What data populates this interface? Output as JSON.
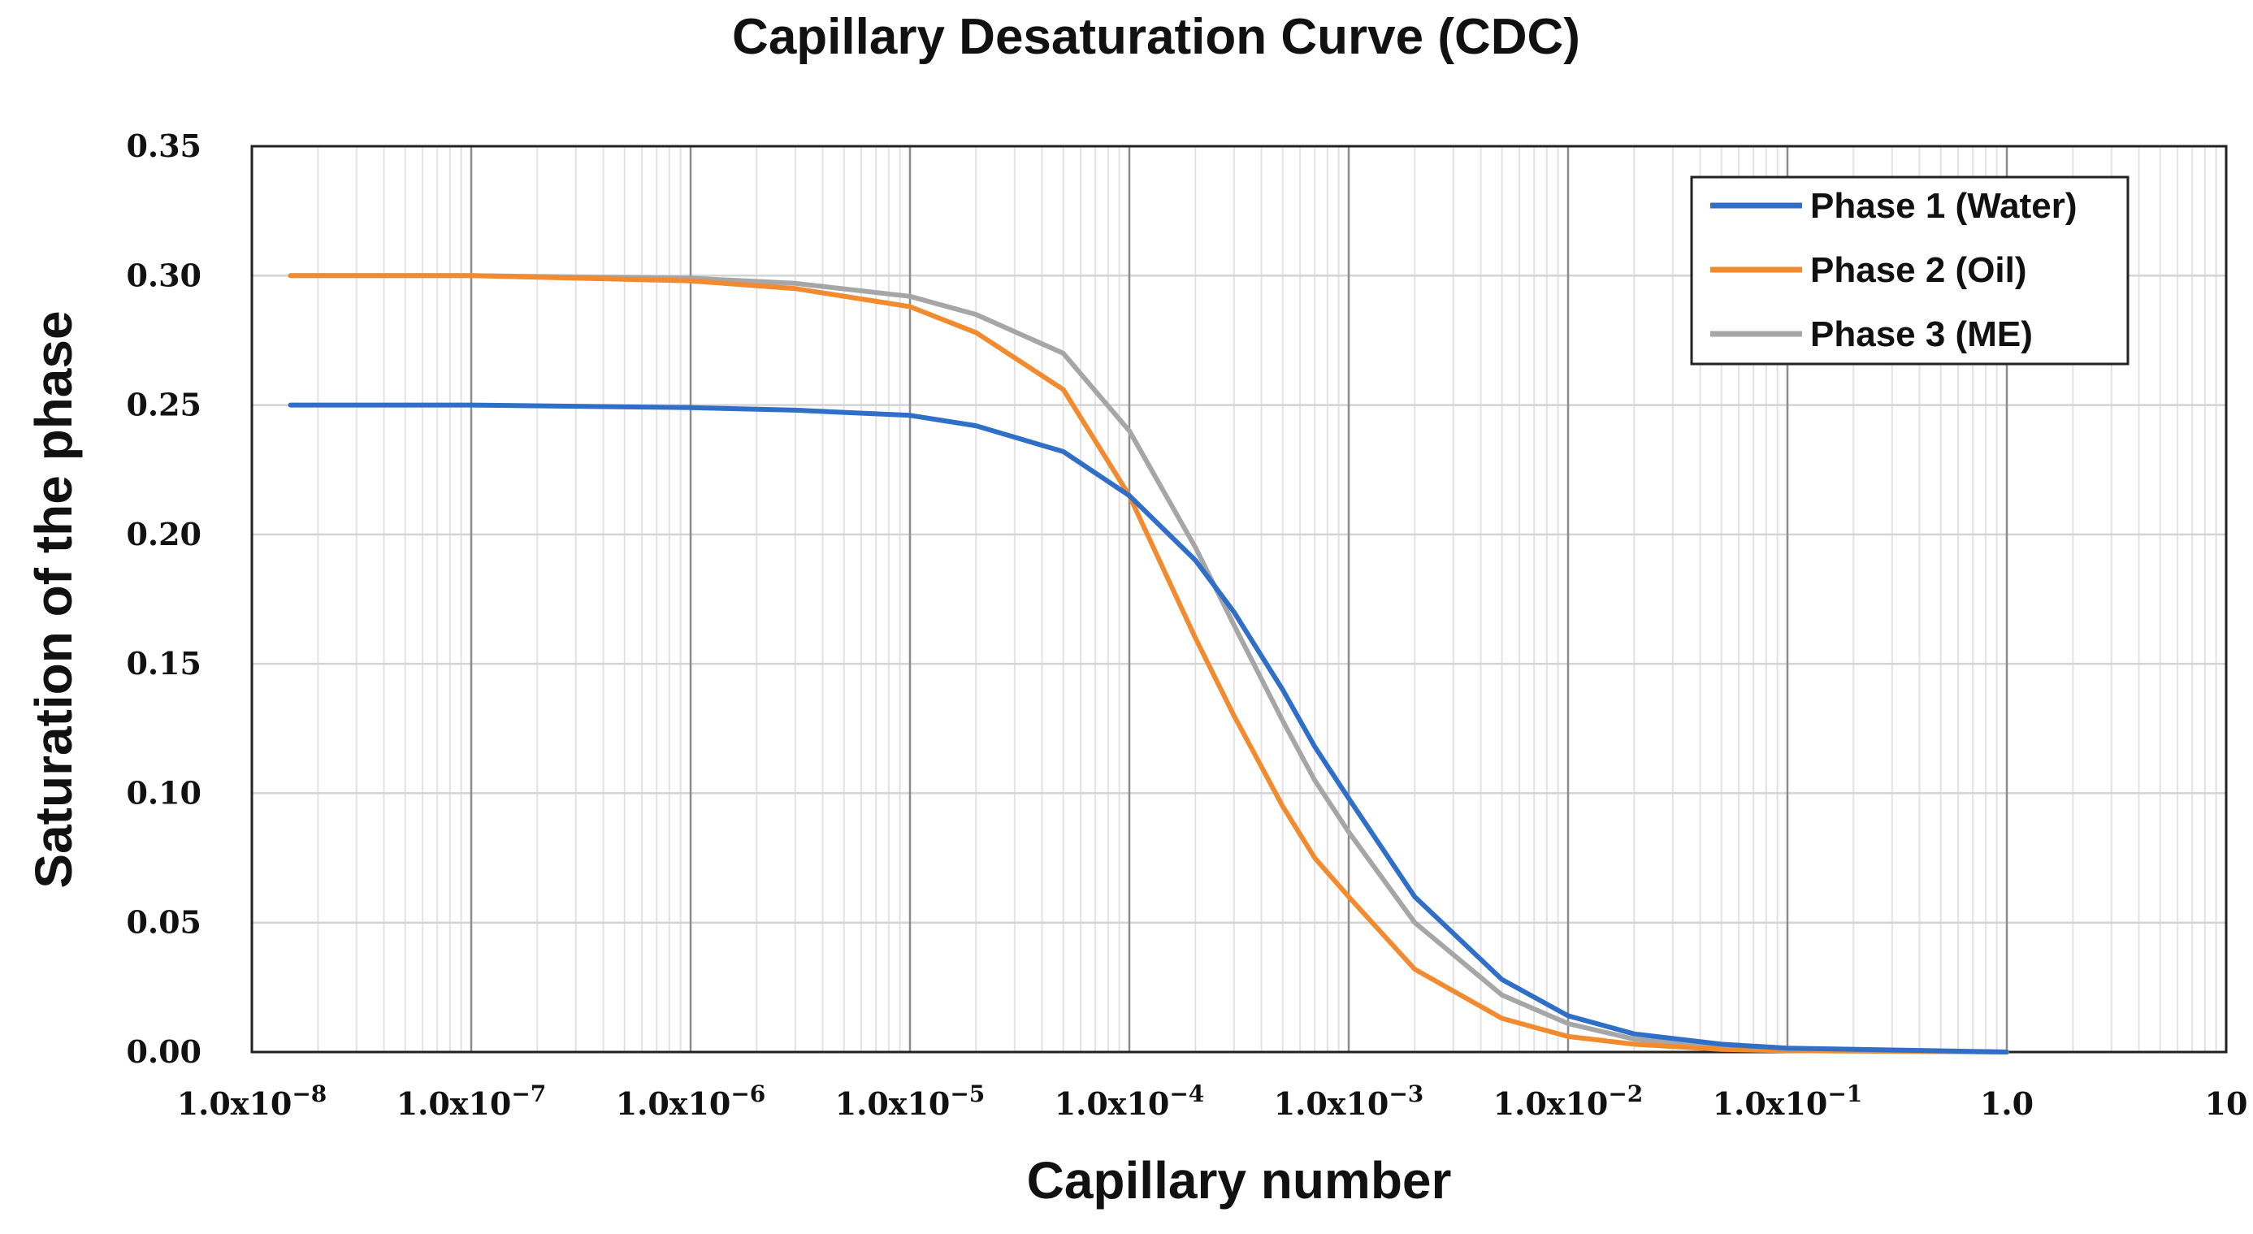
{
  "chart_data": {
    "type": "line",
    "title": "Capillary Desaturation Curve (CDC)",
    "xlabel": "Capillary number",
    "ylabel": "Saturation of the phase",
    "xscale": "log",
    "xlim": [
      1e-08,
      10
    ],
    "ylim": [
      0,
      0.35
    ],
    "grid": true,
    "legend_position": "top-right",
    "x_tick_labels": [
      {
        "mantissa": "1.0x10",
        "exp": "−8",
        "value": 1e-08
      },
      {
        "mantissa": "1.0x10",
        "exp": "−7",
        "value": 1e-07
      },
      {
        "mantissa": "1.0x10",
        "exp": "−6",
        "value": 1e-06
      },
      {
        "mantissa": "1.0x10",
        "exp": "−5",
        "value": 1e-05
      },
      {
        "mantissa": "1.0x10",
        "exp": "−4",
        "value": 0.0001
      },
      {
        "mantissa": "1.0x10",
        "exp": "−3",
        "value": 0.001
      },
      {
        "mantissa": "1.0x10",
        "exp": "−2",
        "value": 0.01
      },
      {
        "mantissa": "1.0x10",
        "exp": "−1",
        "value": 0.1
      },
      {
        "mantissa": "1.0",
        "exp": "",
        "value": 1
      },
      {
        "mantissa": "10",
        "exp": "",
        "value": 10
      }
    ],
    "y_tick_labels": [
      "0.00",
      "0.05",
      "0.10",
      "0.15",
      "0.20",
      "0.25",
      "0.30",
      "0.35"
    ],
    "y_tick_values": [
      0,
      0.05,
      0.1,
      0.15,
      0.2,
      0.25,
      0.3,
      0.35
    ],
    "series": [
      {
        "name": "Phase 1 (Water)",
        "color": "#2f6fc7",
        "x": [
          1.5e-08,
          1e-07,
          1e-06,
          3e-06,
          1e-05,
          2e-05,
          5e-05,
          0.0001,
          0.0002,
          0.0003,
          0.0005,
          0.0007,
          0.001,
          0.002,
          0.005,
          0.01,
          0.02,
          0.05,
          0.1,
          1
        ],
        "y": [
          0.25,
          0.25,
          0.249,
          0.248,
          0.246,
          0.242,
          0.232,
          0.215,
          0.19,
          0.17,
          0.14,
          0.118,
          0.098,
          0.06,
          0.028,
          0.014,
          0.007,
          0.003,
          0.0015,
          0.0
        ]
      },
      {
        "name": "Phase 2 (Oil)",
        "color": "#f28b30",
        "x": [
          1.5e-08,
          1e-07,
          1e-06,
          3e-06,
          1e-05,
          2e-05,
          5e-05,
          0.0001,
          0.0002,
          0.0003,
          0.0005,
          0.0007,
          0.001,
          0.002,
          0.005,
          0.01,
          0.02,
          0.05,
          0.1,
          1
        ],
        "y": [
          0.3,
          0.3,
          0.298,
          0.295,
          0.288,
          0.278,
          0.256,
          0.215,
          0.16,
          0.13,
          0.095,
          0.075,
          0.06,
          0.032,
          0.013,
          0.006,
          0.003,
          0.001,
          0.0005,
          0.0
        ]
      },
      {
        "name": "Phase 3 (ME)",
        "color": "#a6a6a6",
        "x": [
          1.5e-08,
          1e-07,
          1e-06,
          3e-06,
          1e-05,
          2e-05,
          5e-05,
          0.0001,
          0.0002,
          0.0003,
          0.0005,
          0.0007,
          0.001,
          0.002,
          0.005,
          0.01,
          0.02,
          0.05,
          0.1,
          1
        ],
        "y": [
          0.3,
          0.3,
          0.299,
          0.297,
          0.292,
          0.285,
          0.27,
          0.24,
          0.195,
          0.165,
          0.128,
          0.105,
          0.085,
          0.05,
          0.022,
          0.011,
          0.005,
          0.002,
          0.001,
          0.0
        ]
      }
    ]
  }
}
